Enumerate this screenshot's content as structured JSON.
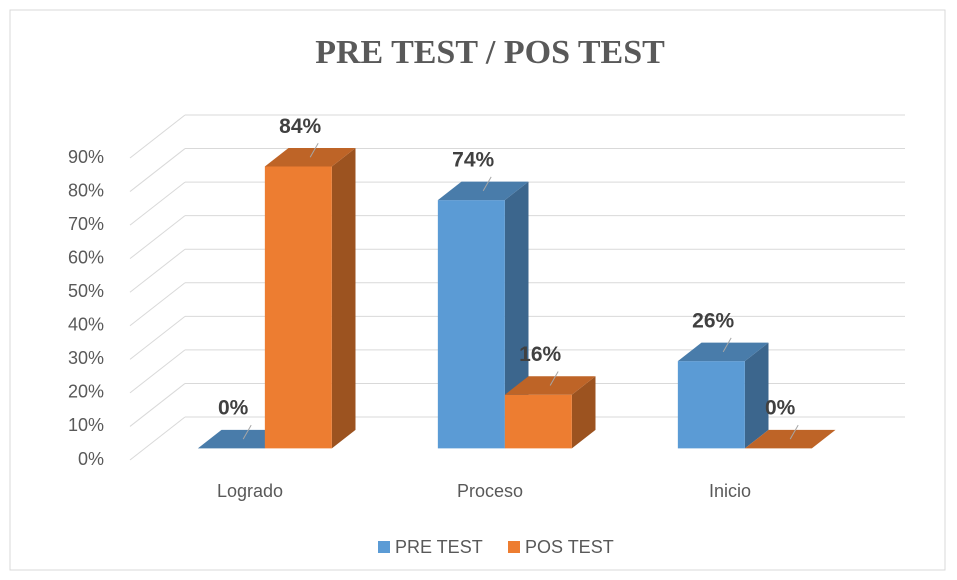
{
  "chart_data": {
    "type": "bar3d",
    "title": "PRE TEST / POS TEST",
    "categories": [
      "Logrado",
      "Proceso",
      "Inicio"
    ],
    "series": [
      {
        "name": "PRE TEST",
        "color": "#5b9bd5",
        "values": [
          0,
          74,
          26
        ],
        "value_labels": [
          "0%",
          "74%",
          "26%"
        ]
      },
      {
        "name": "POS TEST",
        "color": "#ed7d31",
        "values": [
          84,
          16,
          0
        ],
        "value_labels": [
          "84%",
          "16%",
          "0%"
        ]
      }
    ],
    "ylim": [
      0,
      90
    ],
    "yticks": [
      {
        "value": 0,
        "label": "0%"
      },
      {
        "value": 10,
        "label": "10%"
      },
      {
        "value": 20,
        "label": "20%"
      },
      {
        "value": 30,
        "label": "30%"
      },
      {
        "value": 40,
        "label": "40%"
      },
      {
        "value": 50,
        "label": "50%"
      },
      {
        "value": 60,
        "label": "60%"
      },
      {
        "value": 70,
        "label": "70%"
      },
      {
        "value": 80,
        "label": "80%"
      },
      {
        "value": 90,
        "label": "90%"
      }
    ],
    "grid": true,
    "legend": "bottom"
  }
}
